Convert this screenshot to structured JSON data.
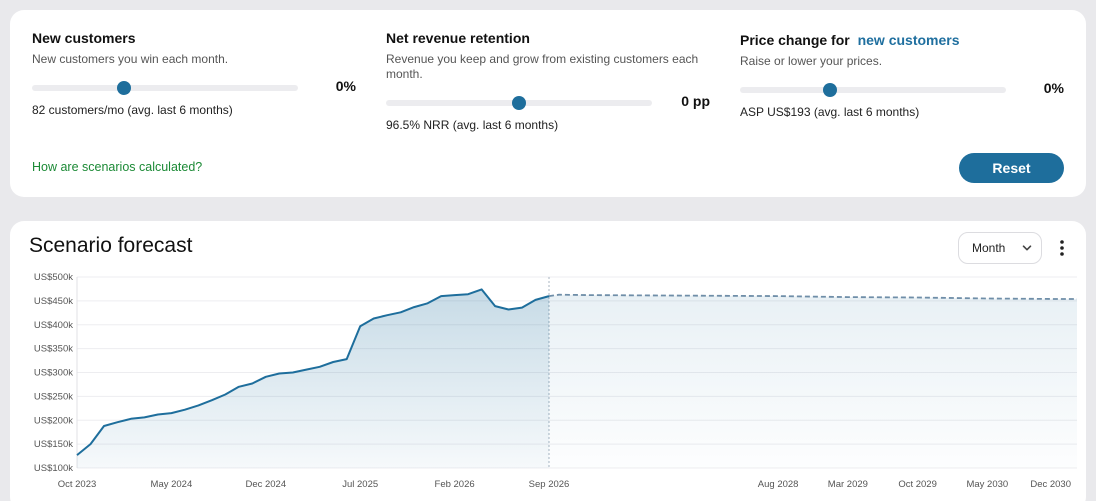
{
  "scenarios": [
    {
      "title": "New customers",
      "title_link": "",
      "description": "New customers you win each month.",
      "value": "0%",
      "note": "82 customers/mo (avg. last 6 months)"
    },
    {
      "title": "Net revenue retention",
      "title_link": "",
      "description": "Revenue you keep and grow from existing customers each month.",
      "value": "0 pp",
      "note": "96.5% NRR (avg. last 6 months)"
    },
    {
      "title": "Price change for",
      "title_link": "new customers",
      "description": "Raise or lower your prices.",
      "value": "0%",
      "note": "ASP US$193 (avg. last 6 months)"
    }
  ],
  "help_link": "How are scenarios calculated?",
  "reset_label": "Reset",
  "forecast": {
    "title": "Scenario forecast",
    "period": "Month"
  },
  "colors": {
    "accent": "#1e6e9c",
    "link_green": "#1c8a36"
  },
  "chart_data": {
    "type": "area",
    "y_ticks": [
      "US$500k",
      "US$450k",
      "US$400k",
      "US$350k",
      "US$300k",
      "US$250k",
      "US$200k",
      "US$150k",
      "US$100k"
    ],
    "ylim": [
      100000,
      500000
    ],
    "x_ticks": [
      "Oct 2023",
      "May 2024",
      "Dec 2024",
      "Jul 2025",
      "Feb 2026",
      "Sep 2026",
      "Aug 2028",
      "Mar 2029",
      "Oct 2029",
      "May 2030",
      "Dec 2030"
    ],
    "forecast_start": "Sep 2026",
    "actual_series": [
      {
        "x": "Oct 2023",
        "y": 127000
      },
      {
        "x": "Nov 2023",
        "y": 150000
      },
      {
        "x": "Dec 2023",
        "y": 188000
      },
      {
        "x": "Jan 2024",
        "y": 196000
      },
      {
        "x": "Feb 2024",
        "y": 203000
      },
      {
        "x": "Mar 2024",
        "y": 206000
      },
      {
        "x": "Apr 2024",
        "y": 212000
      },
      {
        "x": "May 2024",
        "y": 215000
      },
      {
        "x": "Jun 2024",
        "y": 222000
      },
      {
        "x": "Jul 2024",
        "y": 231000
      },
      {
        "x": "Aug 2024",
        "y": 242000
      },
      {
        "x": "Sep 2024",
        "y": 254000
      },
      {
        "x": "Oct 2024",
        "y": 270000
      },
      {
        "x": "Nov 2024",
        "y": 277000
      },
      {
        "x": "Dec 2024",
        "y": 291000
      },
      {
        "x": "Jan 2025",
        "y": 298000
      },
      {
        "x": "Feb 2025",
        "y": 300000
      },
      {
        "x": "Mar 2025",
        "y": 306000
      },
      {
        "x": "Apr 2025",
        "y": 312000
      },
      {
        "x": "May 2025",
        "y": 322000
      },
      {
        "x": "Jun 2025",
        "y": 328000
      },
      {
        "x": "Jul 2025",
        "y": 397000
      },
      {
        "x": "Aug 2025",
        "y": 413000
      },
      {
        "x": "Sep 2025",
        "y": 420000
      },
      {
        "x": "Oct 2025",
        "y": 426000
      },
      {
        "x": "Nov 2025",
        "y": 437000
      },
      {
        "x": "Dec 2025",
        "y": 445000
      },
      {
        "x": "Jan 2026",
        "y": 460000
      },
      {
        "x": "Feb 2026",
        "y": 462000
      },
      {
        "x": "Mar 2026",
        "y": 464000
      },
      {
        "x": "Apr 2026",
        "y": 474000
      },
      {
        "x": "May 2026",
        "y": 439000
      },
      {
        "x": "Jun 2026",
        "y": 432000
      },
      {
        "x": "Jul 2026",
        "y": 436000
      },
      {
        "x": "Aug 2026",
        "y": 452000
      },
      {
        "x": "Sep 2026",
        "y": 460000
      }
    ],
    "forecast_series": [
      {
        "x": "Sep 2026",
        "y": 460000
      },
      {
        "x": "Oct 2026",
        "y": 463000
      },
      {
        "x": "Jan 2027",
        "y": 462000
      },
      {
        "x": "Aug 2028",
        "y": 460000
      },
      {
        "x": "Mar 2029",
        "y": 458000
      },
      {
        "x": "Oct 2029",
        "y": 457000
      },
      {
        "x": "May 2030",
        "y": 455000
      },
      {
        "x": "Dec 2030",
        "y": 454000
      },
      {
        "x": "Feb 2031",
        "y": 454000
      }
    ]
  }
}
